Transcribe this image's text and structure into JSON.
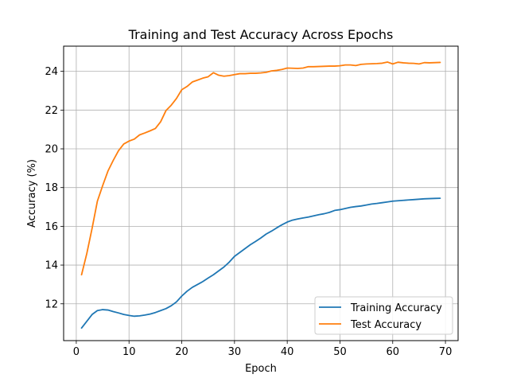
{
  "chart_data": {
    "type": "line",
    "title": "Training and Test Accuracy Across Epochs",
    "xlabel": "Epoch",
    "ylabel": "Accuracy (%)",
    "xlim": [
      -2.4,
      72.4
    ],
    "ylim": [
      10.1,
      25.3
    ],
    "xticks": [
      0,
      10,
      20,
      30,
      40,
      50,
      60,
      70
    ],
    "yticks": [
      12,
      14,
      16,
      18,
      20,
      22,
      24
    ],
    "grid": true,
    "legend_position": "lower right",
    "x": [
      1,
      2,
      3,
      4,
      5,
      6,
      7,
      8,
      9,
      10,
      11,
      12,
      13,
      14,
      15,
      16,
      17,
      18,
      19,
      20,
      21,
      22,
      23,
      24,
      25,
      26,
      27,
      28,
      29,
      30,
      31,
      32,
      33,
      34,
      35,
      36,
      37,
      38,
      39,
      40,
      41,
      42,
      43,
      44,
      45,
      46,
      47,
      48,
      49,
      50,
      51,
      52,
      53,
      54,
      55,
      56,
      57,
      58,
      59,
      60,
      61,
      62,
      63,
      64,
      65,
      66,
      67,
      68,
      69
    ],
    "series": [
      {
        "name": "Training Accuracy",
        "color": "#1f77b4",
        "values": [
          10.75,
          11.1,
          11.45,
          11.65,
          11.7,
          11.68,
          11.6,
          11.53,
          11.45,
          11.4,
          11.36,
          11.38,
          11.42,
          11.47,
          11.55,
          11.65,
          11.75,
          11.9,
          12.1,
          12.4,
          12.65,
          12.85,
          13.0,
          13.15,
          13.33,
          13.5,
          13.7,
          13.9,
          14.15,
          14.45,
          14.65,
          14.85,
          15.05,
          15.22,
          15.4,
          15.6,
          15.75,
          15.92,
          16.08,
          16.22,
          16.32,
          16.38,
          16.43,
          16.48,
          16.54,
          16.6,
          16.65,
          16.72,
          16.82,
          16.86,
          16.92,
          16.98,
          17.02,
          17.05,
          17.1,
          17.15,
          17.18,
          17.22,
          17.26,
          17.3,
          17.32,
          17.34,
          17.36,
          17.38,
          17.4,
          17.42,
          17.43,
          17.44,
          17.45
        ]
      },
      {
        "name": "Test Accuracy",
        "color": "#ff7f0e",
        "values": [
          13.5,
          14.6,
          15.9,
          17.3,
          18.1,
          18.85,
          19.4,
          19.9,
          20.25,
          20.4,
          20.5,
          20.72,
          20.82,
          20.93,
          21.05,
          21.4,
          21.97,
          22.25,
          22.6,
          23.05,
          23.22,
          23.45,
          23.55,
          23.65,
          23.72,
          23.93,
          23.8,
          23.75,
          23.78,
          23.83,
          23.88,
          23.88,
          23.9,
          23.9,
          23.92,
          23.95,
          24.02,
          24.05,
          24.1,
          24.17,
          24.16,
          24.15,
          24.17,
          24.24,
          24.24,
          24.25,
          24.26,
          24.27,
          24.27,
          24.29,
          24.33,
          24.33,
          24.3,
          24.36,
          24.38,
          24.39,
          24.4,
          24.42,
          24.48,
          24.38,
          24.47,
          24.44,
          24.42,
          24.41,
          24.38,
          24.45,
          24.44,
          24.45,
          24.46
        ]
      }
    ]
  }
}
